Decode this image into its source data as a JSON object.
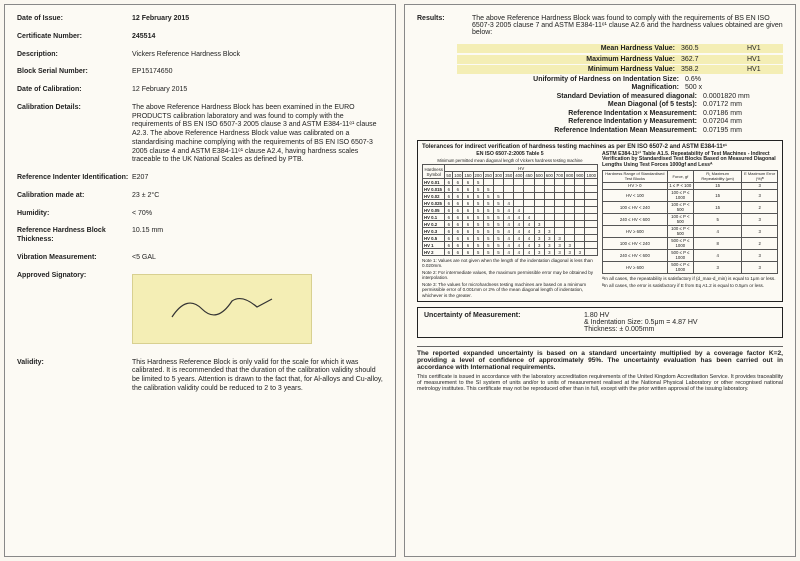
{
  "left": {
    "date_of_issue": {
      "label": "Date of Issue:",
      "value": "12 February 2015"
    },
    "cert_no": {
      "label": "Certificate Number:",
      "value": "245514"
    },
    "description": {
      "label": "Description:",
      "value": "Vickers Reference Hardness Block"
    },
    "serial": {
      "label": "Block Serial Number:",
      "value": "EP15174650"
    },
    "date_cal": {
      "label": "Date of Calibration:",
      "value": "12 February 2015"
    },
    "cal_details": {
      "label": "Calibration Details:",
      "value": "The above Reference Hardness Block has been examined in the EURO PRODUCTS calibration laboratory and was found to comply with the requirements of BS EN ISO 6507-3 2005 clause 3 and ASTM E384-11ᵉ¹ clause A2.3. The above Reference Hardness Block value was calibrated on a standardising machine complying with the requirements of BS EN ISO 6507-3 2005 clause 4 and ASTM E384-11ᵉ¹ clause A2.4, having hardness scales traceable to the UK National Scales as defined by PTB."
    },
    "indenter": {
      "label": "Reference Indenter Identification:",
      "value": "E207"
    },
    "cal_at": {
      "label": "Calibration made at:",
      "value": "23 ± 2°C"
    },
    "humidity": {
      "label": "Humidity:",
      "value": "< 70%"
    },
    "thickness": {
      "label": "Reference Hardness Block Thickness:",
      "value": "10.15 mm"
    },
    "vibration": {
      "label": "Vibration Measurement:",
      "value": "<5 GAL"
    },
    "signatory": {
      "label": "Approved Signatory:"
    },
    "validity": {
      "label": "Validity:",
      "value": "This Hardness Reference Block is only valid for the scale for which it was calibrated. It is recommended that the duration of the calibration validity should be limited to 5 years. Attention is drawn to the fact that, for Al-alloys and Cu-alloy, the calibration validity could be reduced to 2 to 3 years."
    }
  },
  "right": {
    "results": {
      "label": "Results:",
      "value": "The above Reference Hardness Block was found to comply with the requirements of BS EN ISO 6507-3 2005 clause 7 and ASTM E384-11ᵉ¹ clause A2.6 and the hardness values obtained are given below:"
    },
    "mean": {
      "k": "Mean Hardness Value:",
      "v": "360.5",
      "u": "HV1"
    },
    "max": {
      "k": "Maximum Hardness Value:",
      "v": "362.7",
      "u": "HV1"
    },
    "min": {
      "k": "Minimum Hardness Value:",
      "v": "358.2",
      "u": "HV1"
    },
    "uniformity": {
      "k": "Uniformity of Hardness on Indentation Size:",
      "v": "0.6%"
    },
    "mag": {
      "k": "Magnification:",
      "v": "500 x"
    },
    "sd": {
      "k": "Standard Deviation of measured diagonal:",
      "v": "0.0001820 mm"
    },
    "md": {
      "k": "Mean Diagonal (of 5 tests):",
      "v": "0.07172 mm"
    },
    "rx": {
      "k": "Reference Indentation x Measurement:",
      "v": "0.07186 mm"
    },
    "ry": {
      "k": "Reference Indentation y Measurement:",
      "v": "0.07204 mm"
    },
    "rm": {
      "k": "Reference Indentation Mean Measurement:",
      "v": "0.07195 mm"
    },
    "tol_title": "Tolerances for indirect verification of hardness testing machines as per EN ISO 6507-2 and ASTM E384-11ᵉ¹",
    "tol_left_sub": "EN ISO 6507-2:2005 Table 5",
    "tol_left_head": "Minimum permitted mean diagonal length of Vickers hardness testing machine",
    "tol_right_sub": "ASTM E384-11ᵉ¹ Table A1.5. Repeatability of Test Machines - Indirect Verification by Standardised Test Blocks Based on Measured Diagonal Lengths Using Test Forces 1000gf and Lessᴬ",
    "left_table": {
      "rows": [
        "HV 0.01",
        "HV 0.015",
        "HV 0.02",
        "HV 0.025",
        "HV 0.05",
        "HV 0.1",
        "HV 0.2",
        "HV 0.3",
        "HV 0.5",
        "HV 1",
        "HV 2"
      ],
      "cols": [
        "50",
        "100",
        "150",
        "200",
        "250",
        "300",
        "350",
        "400",
        "450",
        "500",
        "600",
        "700",
        "800",
        "900",
        "1000"
      ]
    },
    "right_table": {
      "head": [
        "Hardness Range of Standardised Test Blocks",
        "Force, gf",
        "R₁ Maximum Repeatability (μm)",
        "E Maximum Error (%)ᴮ"
      ],
      "rows": [
        [
          "HV > 0",
          "1 ≤ P < 100",
          "15",
          "3"
        ],
        [
          "HV < 100",
          "100 ≤ P ≤ 1000",
          "15",
          "3"
        ],
        [
          "100 ≤ HV < 240",
          "100 ≤ P < 500",
          "15",
          "2"
        ],
        [
          "240 ≤ HV < 600",
          "100 ≤ P < 500",
          "5",
          "3"
        ],
        [
          "HV ≥ 600",
          "100 ≤ P < 500",
          "4",
          "3"
        ],
        [
          "100 ≤ HV < 240",
          "500 ≤ P ≤ 1000",
          "8",
          "2"
        ],
        [
          "240 ≤ HV < 600",
          "500 ≤ P ≤ 1000",
          "4",
          "3"
        ],
        [
          "HV ≥ 600",
          "500 ≤ P ≤ 1000",
          "3",
          "3"
        ]
      ]
    },
    "note1": "Note 1: Values are not given when the length of the indentation diagonal is less than 0.020mm.",
    "note2": "Note 2: For intermediate values, the maximum permissible error may be obtained by interpolation.",
    "note3": "Note 3: The values for microhardness testing machines are based on a minimum permissible error of 0.001mm or 2% of the mean diagonal length of indentation, whichever is the greater.",
    "noteA": "ᴬIn all cases, the repeatability is satisfactory if (d_max-d_min) is equal to 1μm or less.",
    "noteB": "ᴮIn all cases, the error is satisfactory if E from Eq A1.2 is equal to 0.5μm or less.",
    "unc": {
      "k": "Uncertainty of Measurement:",
      "v1": "1.80 HV",
      "v2": "& Indentation Size: 0.5μm = 4.87 HV",
      "v3": "Thickness:  ± 0.005mm"
    },
    "foot_bold": "The reported expanded uncertainty is based on a standard uncertainty multiplied by a coverage factor K=2, providing a level of confidence of approximately 95%. The uncertainty evaluation has been carried out in accordance with International requirements.",
    "foot_tiny": "This certificate is issued in accordance with the laboratory accreditation requirements of the United Kingdom Accreditation Service. It provides traceability of measurement to the SI system of units and/or to units of measurement realised at the National Physical Laboratory or other recognised national metrology institutes. This certificate may not be reproduced other than in full, except with the prior written approval of the issuing laboratory."
  },
  "colors": {
    "highlight": "#f4eeb5",
    "page_bg": "#fcfaf4",
    "border": "#222222"
  }
}
